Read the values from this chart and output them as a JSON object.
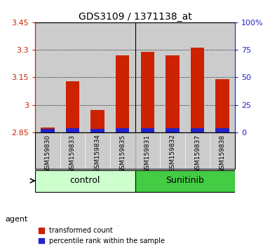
{
  "title": "GDS3109 / 1371138_at",
  "samples": [
    "GSM159830",
    "GSM159833",
    "GSM159834",
    "GSM159835",
    "GSM159831",
    "GSM159832",
    "GSM159837",
    "GSM159838"
  ],
  "red_values": [
    2.875,
    3.13,
    2.97,
    3.27,
    3.29,
    3.27,
    3.31,
    3.14
  ],
  "blue_values": [
    0.018,
    0.022,
    0.018,
    0.022,
    0.022,
    0.022,
    0.022,
    0.022
  ],
  "y_min": 2.85,
  "y_max": 3.45,
  "y_ticks_left": [
    2.85,
    3.0,
    3.15,
    3.3,
    3.45
  ],
  "y_ticks_left_labels": [
    "2.85",
    "3",
    "3.15",
    "3.3",
    "3.45"
  ],
  "y_ticks_right_pct": [
    0,
    25,
    50,
    75,
    100
  ],
  "y_ticks_right_labels": [
    "0",
    "25",
    "50",
    "75",
    "100%"
  ],
  "control_label": "control",
  "sunitinib_label": "Sunitinib",
  "agent_label": "agent",
  "legend_red": "transformed count",
  "legend_blue": "percentile rank within the sample",
  "bar_width": 0.55,
  "red_color": "#cc2200",
  "blue_color": "#2222cc",
  "control_bg": "#ccffcc",
  "sunitinib_bg": "#44cc44",
  "bar_bg": "#cccccc",
  "plot_bg": "#ffffff",
  "grid_color": "#000000",
  "title_color": "#000000",
  "left_axis_color": "#cc2200",
  "right_axis_color": "#2222cc",
  "n_control": 4,
  "n_sunitinib": 4,
  "grid_yticks": [
    3.0,
    3.15,
    3.3
  ]
}
